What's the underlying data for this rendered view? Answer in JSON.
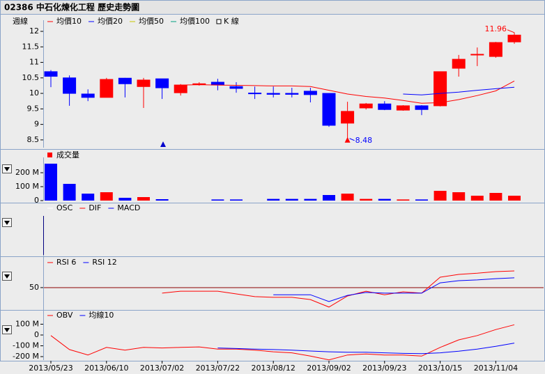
{
  "header": {
    "title": "02386 中石化煉化工程  歷史走勢圖"
  },
  "chart_data": [
    {
      "type": "candlestick",
      "period_label": "週線",
      "categories": [
        "2013/05/23",
        null,
        null,
        "2013/06/10",
        null,
        null,
        "2013/07/02",
        null,
        null,
        "2013/07/22",
        null,
        null,
        "2013/08/12",
        null,
        null,
        "2013/09/02",
        null,
        null,
        "2013/09/23",
        null,
        null,
        "2013/10/15",
        null,
        null,
        "2013/11/04",
        null
      ],
      "candles": {
        "name": "K 線",
        "up_color": "#ff0000",
        "down_color": "#0000ff",
        "open": [
          10.7,
          10.5,
          9.98,
          9.87,
          10.49,
          10.22,
          10.47,
          10.02,
          10.3,
          10.36,
          10.22,
          10.01,
          10.0,
          10.0,
          10.07,
          10.0,
          9.04,
          9.53,
          9.66,
          9.46,
          9.6,
          9.6,
          10.81,
          11.24,
          11.19,
          11.66
        ],
        "high": [
          10.75,
          10.58,
          10.13,
          10.5,
          10.5,
          10.5,
          10.47,
          10.3,
          10.36,
          10.47,
          10.36,
          10.22,
          10.22,
          10.18,
          10.18,
          10.0,
          9.73,
          9.69,
          9.75,
          9.62,
          9.62,
          10.7,
          11.24,
          11.48,
          11.66,
          11.96
        ],
        "low": [
          10.2,
          9.6,
          9.75,
          9.87,
          9.87,
          9.53,
          9.82,
          9.93,
          10.25,
          10.1,
          10.02,
          9.82,
          9.87,
          9.87,
          9.71,
          8.92,
          8.48,
          9.48,
          9.46,
          9.44,
          9.3,
          9.58,
          10.54,
          10.88,
          11.15,
          11.6
        ],
        "close": [
          10.55,
          10.0,
          9.87,
          10.45,
          10.31,
          10.43,
          10.18,
          10.27,
          10.31,
          10.27,
          10.16,
          10.0,
          9.97,
          9.97,
          9.96,
          8.97,
          9.42,
          9.66,
          9.48,
          9.6,
          9.48,
          10.7,
          11.1,
          11.26,
          11.64,
          11.88
        ]
      },
      "max_label": "11.96",
      "min_label": "8.48",
      "series": [
        {
          "name": "均價10",
          "color": "#ff0000",
          "values": [
            null,
            null,
            null,
            null,
            null,
            null,
            null,
            10.27,
            10.28,
            10.27,
            10.26,
            10.25,
            10.24,
            10.24,
            10.22,
            10.1,
            9.98,
            9.9,
            9.85,
            9.77,
            9.68,
            9.7,
            9.8,
            9.93,
            10.08,
            10.4
          ]
        },
        {
          "name": "均價20",
          "color": "#0000ff",
          "values": [
            null,
            null,
            null,
            null,
            null,
            null,
            null,
            null,
            null,
            null,
            null,
            null,
            null,
            null,
            null,
            null,
            null,
            null,
            null,
            9.98,
            9.95,
            10.0,
            10.04,
            10.1,
            10.15,
            10.2
          ]
        },
        {
          "name": "均價50",
          "color": "#c8c800",
          "values": [
            null,
            null,
            null,
            null,
            null,
            null,
            null,
            null,
            null,
            null,
            null,
            null,
            null,
            null,
            null,
            null,
            null,
            null,
            null,
            null,
            null,
            null,
            null,
            null,
            null,
            null
          ]
        },
        {
          "name": "均價100",
          "color": "#00a080",
          "values": [
            null,
            null,
            null,
            null,
            null,
            null,
            null,
            null,
            null,
            null,
            null,
            null,
            null,
            null,
            null,
            null,
            null,
            null,
            null,
            null,
            null,
            null,
            null,
            null,
            null,
            null
          ]
        }
      ],
      "ylim": [
        8.25,
        12.27
      ],
      "yticks": [
        8.5,
        9,
        9.5,
        10,
        10.5,
        11,
        11.5,
        12
      ]
    },
    {
      "type": "bar",
      "series": [
        {
          "name": "成交量",
          "color": "#ff0000",
          "values": [
            265,
            120,
            50,
            60,
            20,
            25,
            10,
            0,
            0,
            8,
            8,
            0,
            12,
            12,
            12,
            40,
            50,
            12,
            12,
            8,
            8,
            70,
            60,
            35,
            55,
            35
          ]
        }
      ],
      "ylim": [
        0,
        290
      ],
      "yticks": [
        0,
        {
          "value": 100,
          "label": "100 M"
        },
        {
          "value": 200,
          "label": "200 M"
        }
      ]
    },
    {
      "type": "line",
      "series": [
        {
          "name": "OSC",
          "color": "#ffffff",
          "values": [
            null,
            null,
            null,
            null,
            null,
            null,
            null,
            null,
            null,
            null,
            null,
            null,
            null,
            null,
            null,
            null,
            null,
            null,
            null,
            null,
            null,
            null,
            null,
            null,
            null,
            null
          ]
        },
        {
          "name": "DIF",
          "color": "#ff0000",
          "values": [
            null,
            null,
            null,
            null,
            null,
            null,
            null,
            null,
            null,
            null,
            null,
            null,
            null,
            null,
            null,
            null,
            null,
            null,
            null,
            null,
            null,
            null,
            null,
            null,
            null,
            null
          ]
        },
        {
          "name": "MACD",
          "color": "#0000ff",
          "values": [
            null,
            null,
            null,
            null,
            null,
            null,
            null,
            null,
            null,
            null,
            null,
            null,
            null,
            null,
            null,
            null,
            null,
            null,
            null,
            null,
            null,
            null,
            null,
            null,
            null,
            null
          ]
        }
      ]
    },
    {
      "type": "line",
      "grid_color": "#8b0000",
      "series": [
        {
          "name": "RSI 6",
          "color": "#ff0000",
          "values": [
            null,
            null,
            null,
            null,
            null,
            null,
            40.7,
            44,
            44,
            44,
            39.5,
            34.9,
            33.7,
            33.7,
            30,
            17.4,
            36,
            44,
            38,
            43,
            40.7,
            67.4,
            72,
            74,
            76.7,
            77.9
          ]
        },
        {
          "name": "RSI 12",
          "color": "#0000ff",
          "values": [
            null,
            null,
            null,
            null,
            null,
            null,
            null,
            null,
            null,
            null,
            null,
            null,
            38,
            38,
            38,
            26.7,
            37,
            41.9,
            40.7,
            40.7,
            40.7,
            58,
            61.6,
            62.8,
            65,
            66.3
          ]
        }
      ],
      "ylim": [
        15,
        100
      ],
      "yticks": [
        50
      ]
    },
    {
      "type": "line",
      "series": [
        {
          "name": "OBV",
          "color": "#ff0000",
          "values": [
            -5,
            -135,
            -185,
            -115,
            -140,
            -115,
            -120,
            -115,
            -110,
            -130,
            -130,
            -140,
            -155,
            -165,
            -195,
            -230,
            -185,
            -175,
            -185,
            -185,
            -195,
            -115,
            -45,
            -5,
            50,
            95
          ]
        },
        {
          "name": "均線10",
          "color": "#0000ff",
          "values": [
            null,
            null,
            null,
            null,
            null,
            null,
            null,
            null,
            null,
            -120,
            -125,
            -130,
            -135,
            -140,
            -148,
            -155,
            -160,
            -160,
            -165,
            -170,
            -172,
            -165,
            -150,
            -130,
            -105,
            -75
          ]
        }
      ],
      "ylim": [
        -232,
        232
      ],
      "yticks": [
        {
          "value": 100,
          "label": "100 M"
        },
        0,
        {
          "value": -100,
          "label": "-100 M"
        },
        {
          "value": -200,
          "label": "-200 M"
        }
      ]
    }
  ]
}
